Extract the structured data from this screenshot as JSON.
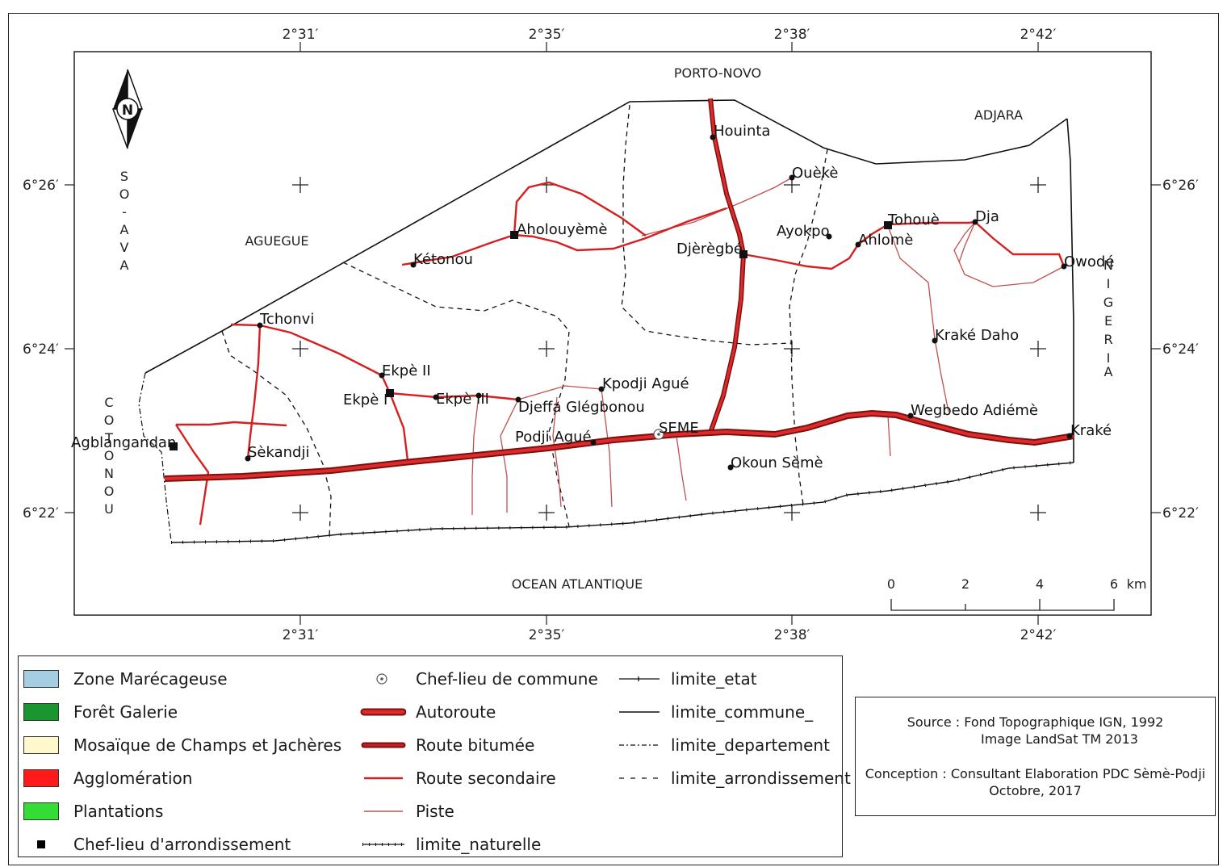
{
  "map": {
    "coords_top": [
      "2°31′",
      "2°35′",
      "2°38′",
      "2°42′"
    ],
    "coords_bottom": [
      "2°31′",
      "2°35′",
      "2°38′",
      "2°42′"
    ],
    "coords_left": [
      "6°26′",
      "6°24′",
      "6°22′"
    ],
    "coords_right": [
      "6°26′",
      "6°24′",
      "6°22′"
    ],
    "north_label": "N",
    "regions": {
      "porto_novo": "PORTO-NOVO",
      "adjara": "ADJARA",
      "aguegue": "AGUEGUE",
      "ocean": "OCEAN ATLANTIQUE",
      "so_ava": [
        "S",
        "O",
        "-",
        "A",
        "V",
        "A"
      ],
      "cotonou": [
        "C",
        "O",
        "T",
        "O",
        "N",
        "O",
        "U"
      ],
      "nigeria": [
        "N",
        "I",
        "G",
        "E",
        "R",
        "I",
        "A"
      ]
    },
    "places": {
      "houinta": "Houinta",
      "oueke": "Ouèkè",
      "aholouyeme": "Aholouyèmè",
      "ketonou": "Kétonou",
      "djeregbe": "Djèrègbé",
      "ayokpo": "Ayokpo",
      "tohoue": "Tohouè",
      "dja": "Dja",
      "ahlome": "Ahlomè",
      "owode": "Owodé",
      "krake_daho": "Kraké Daho",
      "tchonvi": "Tchonvi",
      "ekpe2": "Ekpè II",
      "ekpe1": "Ekpè I",
      "ekpe3": "Ekpè III",
      "djeffa": "Djeffa Glégbonou",
      "kpodji": "Kpodji Agué",
      "podji": "Podji Agué",
      "seme": "SEME",
      "wegbedo": "Wegbedo Adiémè",
      "krake": "Kraké",
      "okoun": "Okoun Sèmè",
      "agblangandan": "Agblangandan",
      "sekandji": "Sèkandji"
    },
    "scale": {
      "ticks": [
        "0",
        "2",
        "4",
        "6"
      ],
      "unit": "km"
    }
  },
  "legend": {
    "col1": [
      {
        "label": "Zone Marécageuse",
        "color": "#a6cee3"
      },
      {
        "label": "Forêt Galerie",
        "color": "#1a9631"
      },
      {
        "label": "Mosaïque de Champs et Jachères",
        "color": "#fff8cc"
      },
      {
        "label": "Agglomération",
        "color": "#ff1a1a"
      },
      {
        "label": "Plantations",
        "color": "#33dd33"
      },
      {
        "label": "Chef-lieu d'arrondissement",
        "color": "#000000"
      }
    ],
    "col2": [
      {
        "label": "Chef-lieu de commune"
      },
      {
        "label": "Autoroute",
        "color": "#cc1a1a"
      },
      {
        "label": "Route bitumée",
        "color": "#8b1212"
      },
      {
        "label": "Route secondaire",
        "color": "#d42020"
      },
      {
        "label": "Piste",
        "color": "#c0504d"
      },
      {
        "label": "limite_naturelle"
      }
    ],
    "col3": [
      {
        "label": "limite_etat"
      },
      {
        "label": "limite_commune_"
      },
      {
        "label": "limite_departement"
      },
      {
        "label": "limite_arrondissement"
      }
    ]
  },
  "source": {
    "line1": "Source : Fond Topographique IGN, 1992",
    "line2": "Image LandSat TM 2013",
    "line3": "Conception : Consultant Elaboration PDC Sèmè-Podji",
    "line4": "Octobre, 2017"
  }
}
